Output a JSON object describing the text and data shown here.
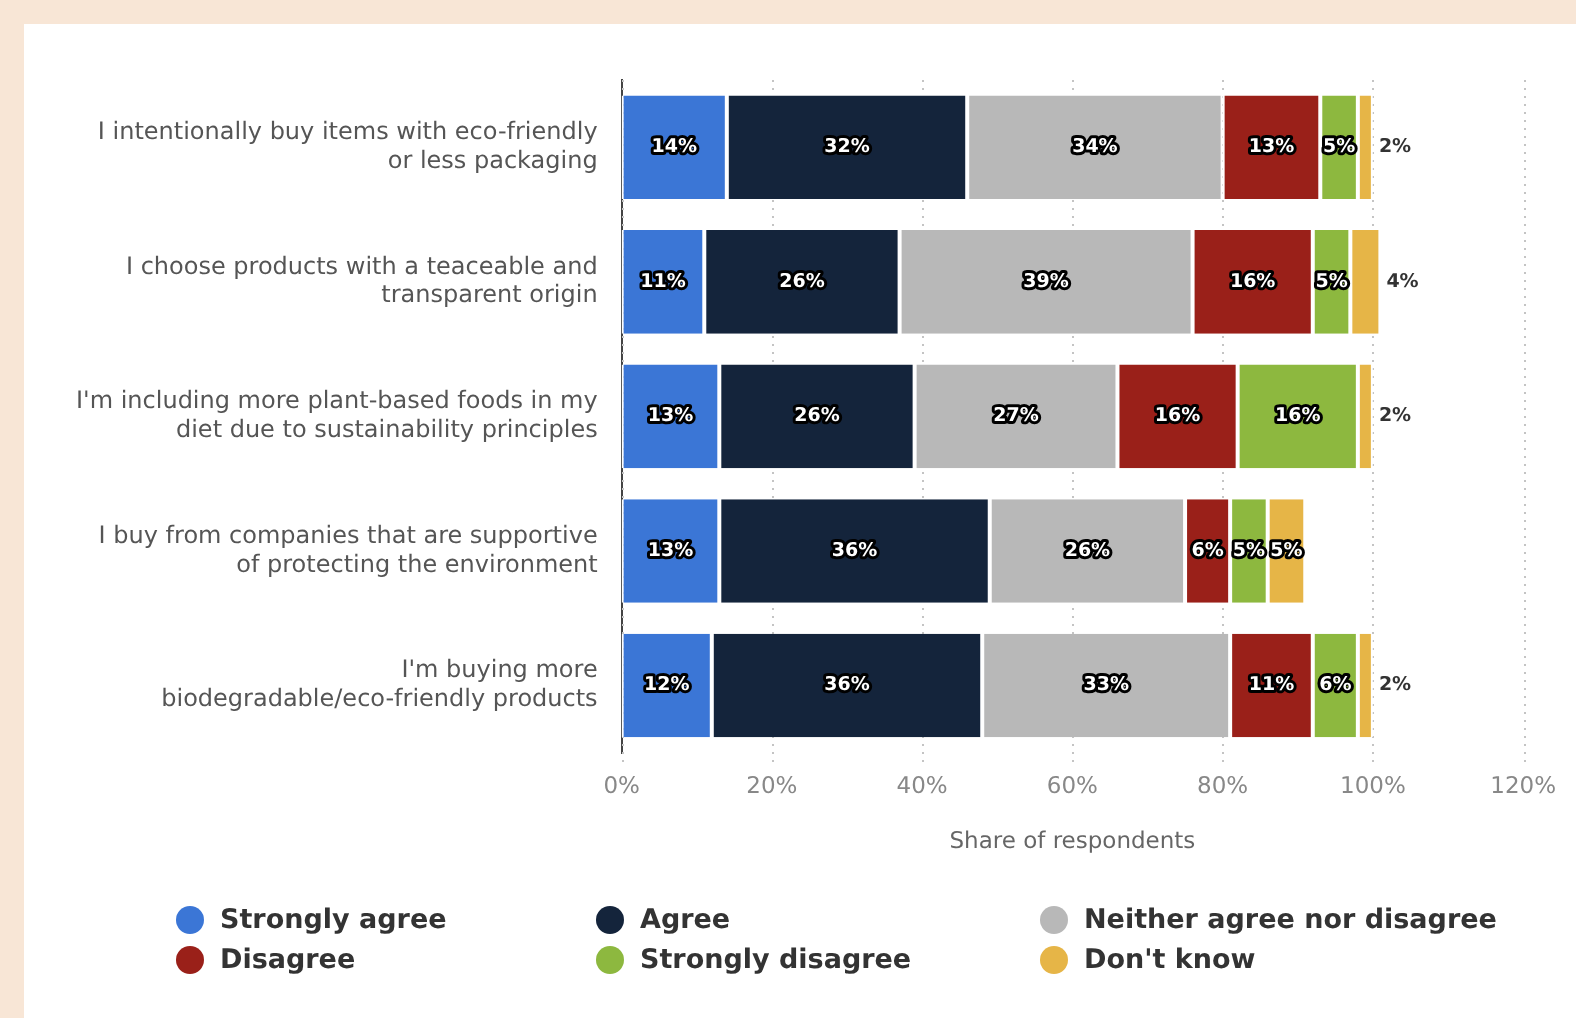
{
  "chart_data": {
    "type": "bar",
    "orientation": "horizontal",
    "stacked": true,
    "xlabel": "Share of respondents",
    "categories": [
      "I intentionally buy items with eco-friendly or less packaging",
      "I choose products with a teaceable and transparent origin",
      "I'm including more plant-based foods in my diet due to sustainability principles",
      "I buy from companies that are supportive of protecting the environment",
      "I'm buying more biodegradable/eco-friendly products"
    ],
    "series": [
      {
        "name": "Strongly agree",
        "color": "#3b76d6",
        "values": [
          14,
          11,
          13,
          13,
          12
        ]
      },
      {
        "name": "Agree",
        "color": "#14243b",
        "values": [
          32,
          26,
          26,
          36,
          36
        ]
      },
      {
        "name": "Neither agree nor disagree",
        "color": "#b8b8b8",
        "values": [
          34,
          39,
          27,
          26,
          33
        ]
      },
      {
        "name": "Disagree",
        "color": "#9a2019",
        "values": [
          13,
          16,
          16,
          6,
          11
        ]
      },
      {
        "name": "Strongly disagree",
        "color": "#8db83f",
        "values": [
          5,
          5,
          16,
          5,
          6
        ]
      },
      {
        "name": "Don't know",
        "color": "#e6b547",
        "values": [
          2,
          4,
          2,
          5,
          2
        ]
      }
    ],
    "xlim": [
      0,
      120
    ],
    "xticks": [
      {
        "value": 0,
        "label": "0%"
      },
      {
        "value": 20,
        "label": "20%"
      },
      {
        "value": 40,
        "label": "40%"
      },
      {
        "value": 60,
        "label": "60%"
      },
      {
        "value": 80,
        "label": "80%"
      },
      {
        "value": 100,
        "label": "100%"
      },
      {
        "value": 120,
        "label": "120%"
      }
    ],
    "value_labels": [
      [
        "14%",
        "11%",
        "13%",
        "13%",
        "12%"
      ],
      [
        "32%",
        "26%",
        "26%",
        "36%",
        "36%"
      ],
      [
        "34%",
        "39%",
        "27%",
        "26%",
        "33%"
      ],
      [
        "13%",
        "16%",
        "16%",
        "6%",
        "11%"
      ],
      [
        "5%",
        "5%",
        "16%",
        "5%",
        "6%"
      ],
      [
        "2%",
        "4%",
        "2%",
        "5%",
        "2%"
      ]
    ],
    "grid": "x",
    "legend": "bottom"
  }
}
